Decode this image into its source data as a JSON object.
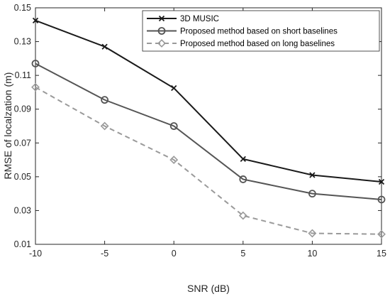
{
  "chart_data": {
    "type": "line",
    "title": "",
    "xlabel": "SNR (dB)",
    "ylabel": "RMSE of localzation (m)",
    "x": [
      -10,
      -5,
      0,
      5,
      10,
      15
    ],
    "xlim": [
      -10,
      15
    ],
    "ylim": [
      0.01,
      0.15
    ],
    "xticks": [
      "-10",
      "-5",
      "0",
      "5",
      "10",
      "15"
    ],
    "yticks": [
      "0.01",
      "0.03",
      "0.05",
      "0.07",
      "0.09",
      "0.11",
      "0.13",
      "0.15"
    ],
    "grid": false,
    "legend_position": "top-right",
    "series": [
      {
        "name": "3D MUSIC",
        "values": [
          0.1425,
          0.127,
          0.1025,
          0.0605,
          0.051,
          0.047
        ],
        "color": "#1a1a1a",
        "marker": "x",
        "line_style": "solid"
      },
      {
        "name": "Proposed method based on short baselines",
        "values": [
          0.117,
          0.0955,
          0.08,
          0.0485,
          0.04,
          0.0365
        ],
        "color": "#555555",
        "marker": "o",
        "line_style": "solid"
      },
      {
        "name": "Proposed method based on long baselines",
        "values": [
          0.103,
          0.08,
          0.06,
          0.027,
          0.0165,
          0.016
        ],
        "color": "#9a9a9a",
        "marker": "diamond",
        "line_style": "dashed"
      }
    ]
  }
}
